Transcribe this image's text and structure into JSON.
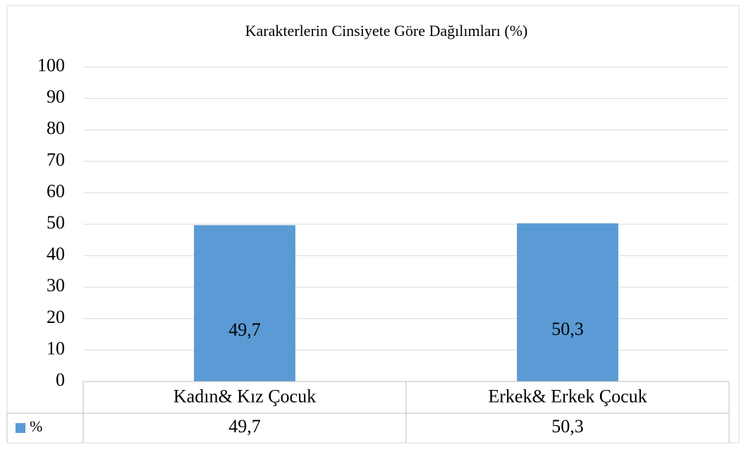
{
  "chart_data": {
    "type": "bar",
    "title": "Karakterlerin Cinsiyete Göre  Dağılımları (%)",
    "categories": [
      "Kadın& Kız Çocuk",
      "Erkek& Erkek Çocuk"
    ],
    "series": [
      {
        "name": "%",
        "color": "#5b9bd5",
        "values": [
          49.7,
          50.3
        ],
        "value_labels": [
          "49,7",
          "50,3"
        ]
      }
    ],
    "ylim": [
      0,
      100
    ],
    "yticks": [
      0,
      10,
      20,
      30,
      40,
      50,
      60,
      70,
      80,
      90,
      100
    ],
    "grid": true,
    "data_table": true
  }
}
